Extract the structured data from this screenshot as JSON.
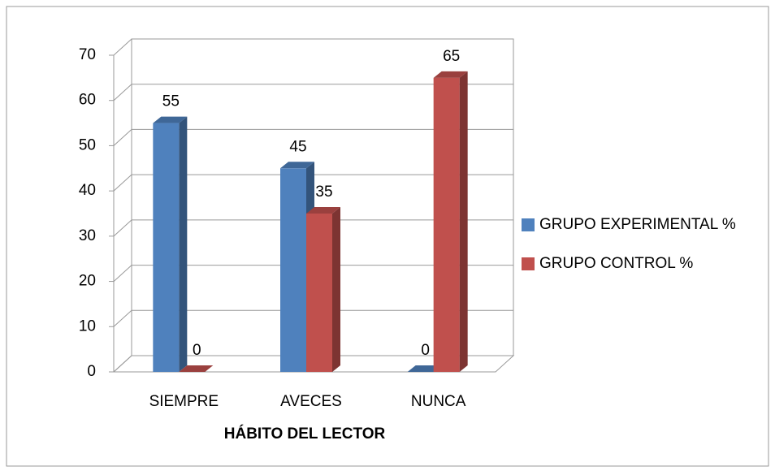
{
  "chart_data": {
    "type": "bar3d",
    "x_label": "HÁBITO DEL LECTOR",
    "categories": [
      "SIEMPRE",
      "AVECES",
      "NUNCA"
    ],
    "series": [
      {
        "name": "GRUPO EXPERIMENTAL %",
        "color": "#4f81bd",
        "values": [
          55,
          45,
          0
        ]
      },
      {
        "name": "GRUPO CONTROL %",
        "color": "#c0504d",
        "values": [
          0,
          35,
          65
        ]
      }
    ],
    "ylim": [
      0,
      70
    ],
    "yticks": [
      0,
      10,
      20,
      30,
      40,
      50,
      60,
      70
    ],
    "grid": true,
    "legend": "right"
  }
}
